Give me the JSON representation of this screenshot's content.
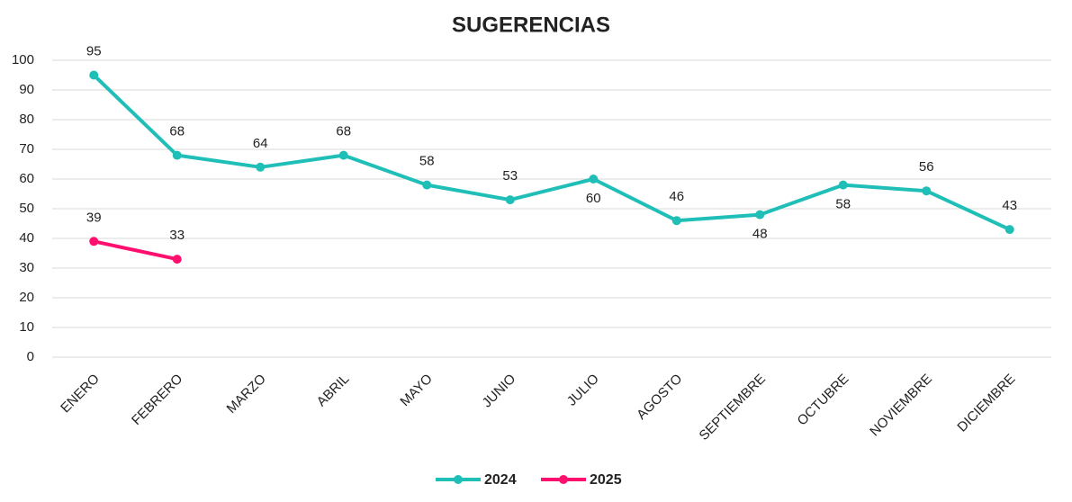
{
  "chart_data": {
    "type": "line",
    "title": "SUGERENCIAS",
    "categories": [
      "ENERO",
      "FEBRERO",
      "MARZO",
      "ABRIL",
      "MAYO",
      "JUNIO",
      "JULIO",
      "AGOSTO",
      "SEPTIEMBRE",
      "OCTUBRE",
      "NOVIEMBRE",
      "DICIEMBRE"
    ],
    "series": [
      {
        "name": "2024",
        "color": "#1fbfb8",
        "values": [
          95,
          68,
          64,
          68,
          58,
          53,
          60,
          46,
          48,
          58,
          56,
          43
        ]
      },
      {
        "name": "2025",
        "color": "#ff0f6e",
        "values": [
          39,
          33,
          null,
          null,
          null,
          null,
          null,
          null,
          null,
          null,
          null,
          null
        ]
      }
    ],
    "ylim": [
      0,
      100
    ],
    "yticks": [
      0,
      10,
      20,
      30,
      40,
      50,
      60,
      70,
      80,
      90,
      100
    ],
    "grid": true,
    "legend": "bottom"
  }
}
